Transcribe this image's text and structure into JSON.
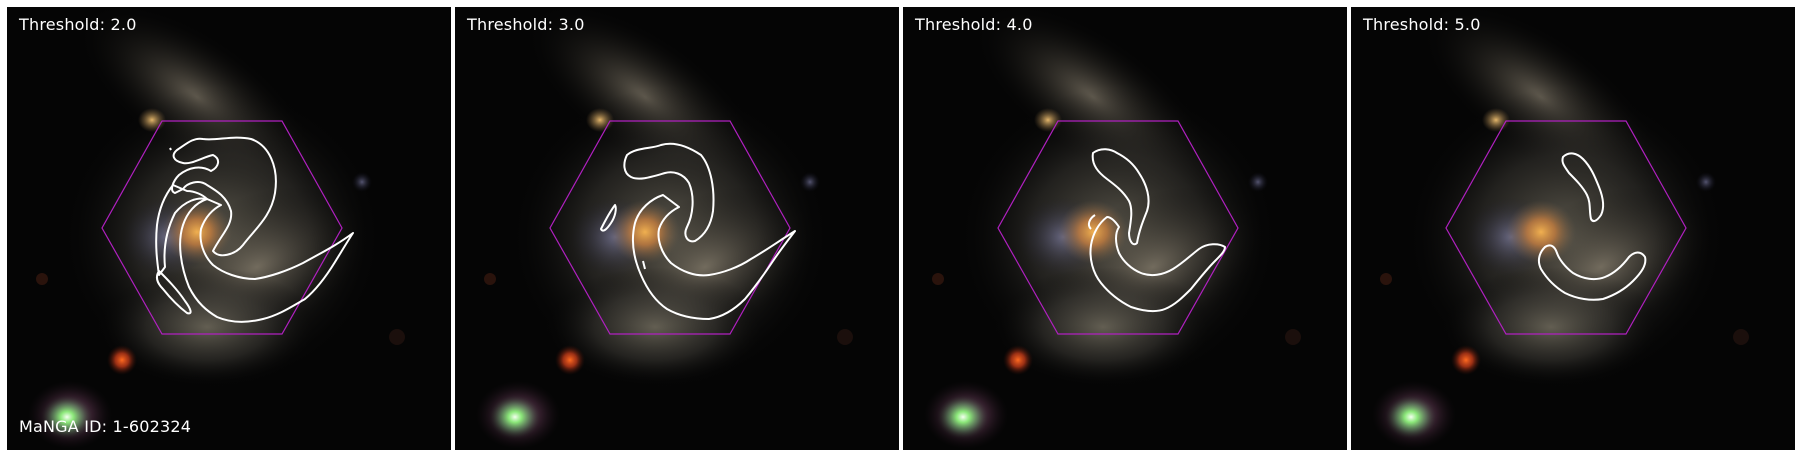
{
  "panels": [
    {
      "threshold_label": "Threshold: 2.0"
    },
    {
      "threshold_label": "Threshold: 3.0"
    },
    {
      "threshold_label": "Threshold: 4.0"
    },
    {
      "threshold_label": "Threshold: 5.0"
    }
  ],
  "manga_id_label": "MaNGA ID: 1-602324",
  "colors": {
    "hexagon": "#b020c0",
    "contour": "#ffffff",
    "background": "#050505"
  }
}
